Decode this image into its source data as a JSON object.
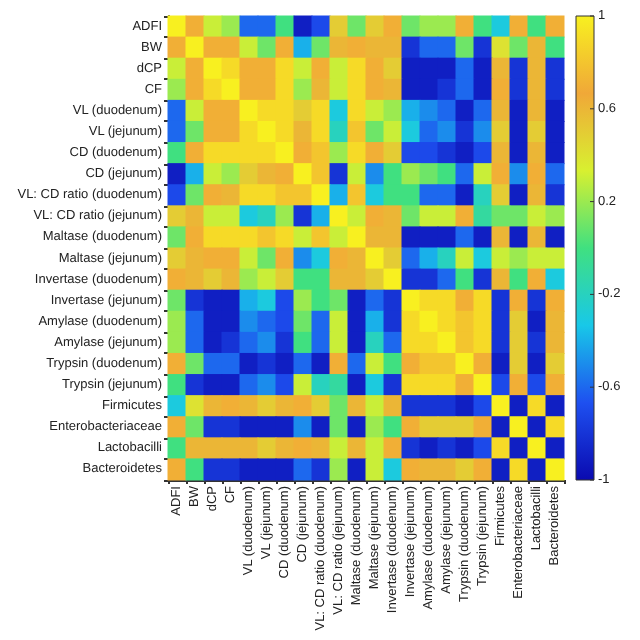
{
  "chart_data": {
    "type": "heatmap",
    "categories": [
      "ADFI",
      "BW",
      "dCP",
      "CF",
      "VL (duodenum)",
      "VL (jejunum)",
      "CD (duodenum)",
      "CD (jejunum)",
      "VL: CD ratio (duodenum)",
      "VL: CD ratio (jejunum)",
      "Maltase (duodenum)",
      "Maltase (jejunum)",
      "Invertase (duodenum)",
      "Invertase (jejunum)",
      "Amylase (duodenum)",
      "Amylase (jejunum)",
      "Trypsin (duodenum)",
      "Trypsin (jejunum)",
      "Firmicutes",
      "Enterobacteriaceae",
      "Lactobacilli",
      "Bacteroidetes"
    ],
    "y_categories": [
      "ADFI",
      "BW",
      "dCP",
      "CF",
      "VL (duodenum)",
      "VL (jejunum)",
      "CD (duodenum)",
      "CD (jejunum)",
      "VL: CD ratio (duodenum)",
      "VL: CD ratio (jejunum)",
      "Maltase (duodenum)",
      "Maltase (jejunum)",
      "Invertase (duodenum)",
      "Invertase (jejunum)",
      "Amylase (duodenum)",
      "Amylase (jejunum)",
      "Trypsin (duodenum)",
      "Trypsin (jejunum)",
      "Firmicutes",
      "Enterobacteriaceae",
      "Lactobacilli",
      "Bacteroidetes"
    ],
    "cells": [
      [
        1,
        0.7,
        0.3,
        0.2,
        -0.6,
        -0.6,
        0.0,
        -0.9,
        -0.7,
        0.5,
        0.1,
        0.5,
        0.7,
        0.1,
        0.2,
        0.2,
        0.7,
        0.0,
        -0.3,
        0.7,
        0.0,
        0.7
      ],
      [
        0.7,
        1,
        0.7,
        0.7,
        0.3,
        0.1,
        0.7,
        -0.4,
        0.1,
        0.6,
        0.7,
        0.6,
        0.6,
        -0.8,
        -0.6,
        -0.6,
        0.1,
        -0.8,
        0.4,
        0.1,
        0.6,
        0.0
      ],
      [
        0.3,
        0.7,
        1,
        0.9,
        0.7,
        0.7,
        0.9,
        0.3,
        0.7,
        0.3,
        0.9,
        0.7,
        0.5,
        -0.9,
        -0.9,
        -0.9,
        -0.6,
        -0.9,
        0.6,
        -0.8,
        0.6,
        -0.8
      ],
      [
        0.2,
        0.7,
        0.9,
        1,
        0.7,
        0.7,
        0.9,
        0.2,
        0.6,
        0.3,
        0.9,
        0.7,
        0.6,
        -0.9,
        -0.9,
        -0.8,
        -0.6,
        -0.9,
        0.7,
        -0.8,
        0.6,
        -0.8
      ],
      [
        -0.6,
        0.3,
        0.7,
        0.7,
        1,
        0.9,
        0.9,
        0.5,
        0.9,
        -0.3,
        0.9,
        0.3,
        0.2,
        -0.4,
        -0.5,
        -0.6,
        -0.9,
        -0.6,
        0.6,
        -0.9,
        0.6,
        -0.9
      ],
      [
        -0.6,
        0.1,
        0.7,
        0.7,
        0.9,
        1,
        0.9,
        0.6,
        0.9,
        -0.2,
        0.8,
        0.1,
        0.3,
        -0.3,
        -0.6,
        -0.5,
        -0.8,
        -0.5,
        0.5,
        -0.9,
        0.5,
        -0.9
      ],
      [
        0.0,
        0.7,
        0.9,
        0.9,
        0.9,
        0.9,
        1,
        0.7,
        0.8,
        0.2,
        0.9,
        0.7,
        0.5,
        -0.7,
        -0.7,
        -0.8,
        -0.9,
        -0.7,
        0.6,
        -0.9,
        0.6,
        -0.9
      ],
      [
        -0.9,
        -0.4,
        0.3,
        0.2,
        0.5,
        0.6,
        0.7,
        1,
        0.8,
        -0.8,
        0.3,
        -0.5,
        0.0,
        0.2,
        0.1,
        0.0,
        -0.6,
        0.3,
        0.7,
        -0.5,
        0.7,
        -0.6
      ],
      [
        -0.7,
        0.1,
        0.7,
        0.6,
        0.9,
        0.9,
        0.8,
        0.8,
        1,
        -0.4,
        0.8,
        -0.3,
        0.0,
        0.0,
        -0.6,
        -0.6,
        -0.9,
        -0.2,
        0.5,
        -0.9,
        0.6,
        -0.8
      ],
      [
        0.5,
        0.6,
        0.3,
        0.3,
        -0.3,
        -0.2,
        0.2,
        -0.8,
        -0.4,
        1,
        0.3,
        0.7,
        0.6,
        0.1,
        0.3,
        0.3,
        0.7,
        -0.1,
        0.1,
        0.1,
        0.3,
        0.2
      ],
      [
        0.1,
        0.7,
        0.9,
        0.9,
        0.9,
        0.8,
        0.9,
        0.3,
        0.8,
        0.3,
        1,
        0.6,
        0.6,
        -0.9,
        -0.9,
        -0.9,
        -0.6,
        -0.9,
        0.6,
        -0.9,
        0.6,
        -0.9
      ],
      [
        0.5,
        0.6,
        0.7,
        0.7,
        0.3,
        0.1,
        0.7,
        -0.5,
        -0.3,
        0.7,
        0.6,
        1,
        0.5,
        -0.6,
        -0.4,
        -0.2,
        0.3,
        -0.3,
        0.3,
        0.2,
        0.3,
        0.3
      ],
      [
        0.7,
        0.6,
        0.5,
        0.6,
        0.2,
        0.3,
        0.5,
        0.0,
        0.0,
        0.6,
        0.6,
        0.5,
        1,
        -0.8,
        -0.8,
        -0.6,
        0.0,
        -0.8,
        0.6,
        0.0,
        0.7,
        -0.3
      ],
      [
        0.1,
        -0.8,
        -0.9,
        -0.9,
        -0.4,
        -0.3,
        -0.7,
        0.2,
        0.0,
        0.1,
        -0.9,
        -0.6,
        -0.8,
        1,
        0.9,
        0.9,
        0.7,
        0.9,
        -0.8,
        0.7,
        -0.8,
        0.7
      ],
      [
        0.2,
        -0.6,
        -0.9,
        -0.9,
        -0.5,
        -0.6,
        -0.7,
        0.1,
        -0.6,
        0.3,
        -0.9,
        -0.4,
        -0.8,
        0.9,
        1,
        0.9,
        0.8,
        0.9,
        -0.8,
        0.5,
        -0.9,
        0.6
      ],
      [
        0.2,
        -0.6,
        -0.9,
        -0.8,
        -0.6,
        -0.5,
        -0.8,
        0.0,
        -0.6,
        0.3,
        -0.9,
        -0.2,
        -0.6,
        0.9,
        0.9,
        1,
        0.8,
        0.9,
        -0.8,
        0.5,
        -0.8,
        0.6
      ],
      [
        0.7,
        0.1,
        -0.6,
        -0.6,
        -0.9,
        -0.8,
        -0.9,
        -0.6,
        -0.9,
        0.7,
        -0.6,
        0.3,
        0.0,
        0.7,
        0.8,
        0.8,
        1,
        0.7,
        -0.9,
        0.5,
        -0.9,
        0.5
      ],
      [
        0.0,
        -0.8,
        -0.9,
        -0.9,
        -0.6,
        -0.5,
        -0.7,
        0.3,
        -0.2,
        -0.1,
        -0.9,
        -0.3,
        -0.8,
        0.9,
        0.9,
        0.9,
        0.7,
        1,
        -0.7,
        0.7,
        -0.7,
        0.7
      ],
      [
        -0.3,
        0.4,
        0.6,
        0.7,
        0.6,
        0.5,
        0.6,
        0.7,
        0.5,
        0.1,
        0.6,
        0.3,
        0.6,
        -0.8,
        -0.8,
        -0.8,
        -0.9,
        -0.7,
        1,
        -0.9,
        0.9,
        -0.9
      ],
      [
        0.7,
        0.1,
        -0.8,
        -0.8,
        -0.9,
        -0.9,
        -0.9,
        -0.5,
        -0.9,
        0.1,
        -0.9,
        0.2,
        0.0,
        0.7,
        0.5,
        0.5,
        0.5,
        0.7,
        -0.9,
        1,
        -0.9,
        0.9
      ],
      [
        0.0,
        0.6,
        0.6,
        0.6,
        0.6,
        0.5,
        0.6,
        0.7,
        0.6,
        0.3,
        0.6,
        0.3,
        0.7,
        -0.8,
        -0.9,
        -0.8,
        -0.9,
        -0.7,
        0.9,
        -0.9,
        1,
        -0.9
      ],
      [
        0.7,
        0.0,
        -0.8,
        -0.8,
        -0.9,
        -0.9,
        -0.9,
        -0.6,
        -0.8,
        0.2,
        -0.9,
        0.3,
        -0.3,
        0.7,
        0.6,
        0.6,
        0.5,
        0.7,
        -0.9,
        0.9,
        -0.9,
        1
      ]
    ],
    "clim": [
      -1,
      1
    ],
    "cticks": [
      -1,
      -0.6,
      -0.2,
      0.2,
      0.6,
      1
    ]
  }
}
